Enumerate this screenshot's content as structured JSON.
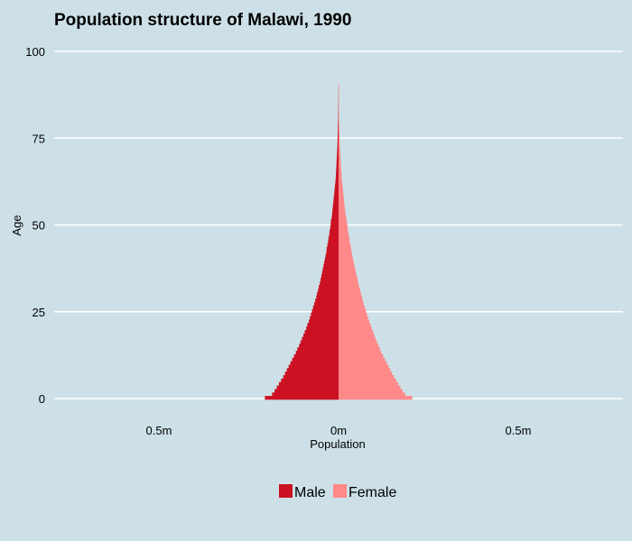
{
  "chart_data": {
    "type": "bar",
    "orientation": "horizontal-pyramid",
    "title": "Population structure of Malawi, 1990",
    "xlabel": "Population",
    "ylabel": "Age",
    "ylim": [
      0,
      100
    ],
    "xlim": [
      -0.75,
      0.75
    ],
    "y_ticks": [
      0,
      25,
      50,
      75,
      100
    ],
    "x_ticks": [
      {
        "value": -0.5,
        "label": "0.5m"
      },
      {
        "value": 0,
        "label": "0m"
      },
      {
        "value": 0.5,
        "label": "0.5m"
      }
    ],
    "grid": true,
    "legend_position": "bottom",
    "series": [
      {
        "name": "Male",
        "color": "#cc1122",
        "values": [
          0.205,
          0.185,
          0.178,
          0.172,
          0.166,
          0.16,
          0.154,
          0.149,
          0.144,
          0.139,
          0.134,
          0.129,
          0.124,
          0.119,
          0.115,
          0.11,
          0.106,
          0.102,
          0.098,
          0.094,
          0.09,
          0.087,
          0.083,
          0.08,
          0.077,
          0.074,
          0.071,
          0.068,
          0.065,
          0.062,
          0.06,
          0.057,
          0.055,
          0.052,
          0.05,
          0.048,
          0.046,
          0.044,
          0.042,
          0.04,
          0.038,
          0.036,
          0.034,
          0.033,
          0.031,
          0.029,
          0.028,
          0.026,
          0.025,
          0.023,
          0.022,
          0.021,
          0.019,
          0.018,
          0.017,
          0.016,
          0.015,
          0.014,
          0.013,
          0.012,
          0.011,
          0.01,
          0.009,
          0.008,
          0.0075,
          0.007,
          0.0065,
          0.006,
          0.0055,
          0.005,
          0.0045,
          0.004,
          0.0035,
          0.003,
          0.0028,
          0.0025,
          0.0022,
          0.002,
          0.0018,
          0.0015,
          0.0013,
          0.0011,
          0.001,
          0.0009,
          0.0008,
          0.0006,
          0.0005,
          0.0004,
          0.0003,
          0.0002,
          0.0001
        ]
      },
      {
        "name": "Female",
        "color": "#ff8888",
        "values": [
          0.205,
          0.185,
          0.178,
          0.172,
          0.166,
          0.16,
          0.154,
          0.149,
          0.144,
          0.139,
          0.134,
          0.129,
          0.124,
          0.119,
          0.115,
          0.111,
          0.107,
          0.103,
          0.099,
          0.096,
          0.092,
          0.089,
          0.085,
          0.082,
          0.079,
          0.076,
          0.073,
          0.07,
          0.067,
          0.065,
          0.062,
          0.06,
          0.057,
          0.055,
          0.053,
          0.051,
          0.048,
          0.046,
          0.044,
          0.042,
          0.04,
          0.038,
          0.036,
          0.035,
          0.033,
          0.031,
          0.03,
          0.028,
          0.026,
          0.025,
          0.024,
          0.022,
          0.021,
          0.019,
          0.018,
          0.017,
          0.016,
          0.015,
          0.014,
          0.013,
          0.012,
          0.011,
          0.01,
          0.009,
          0.0085,
          0.008,
          0.007,
          0.0065,
          0.006,
          0.0055,
          0.005,
          0.0045,
          0.004,
          0.0035,
          0.003,
          0.0027,
          0.0024,
          0.0021,
          0.0018,
          0.0016,
          0.0014,
          0.0012,
          0.001,
          0.0009,
          0.0008,
          0.0006,
          0.0005,
          0.0004,
          0.0003,
          0.0002,
          0.0001
        ]
      }
    ]
  }
}
